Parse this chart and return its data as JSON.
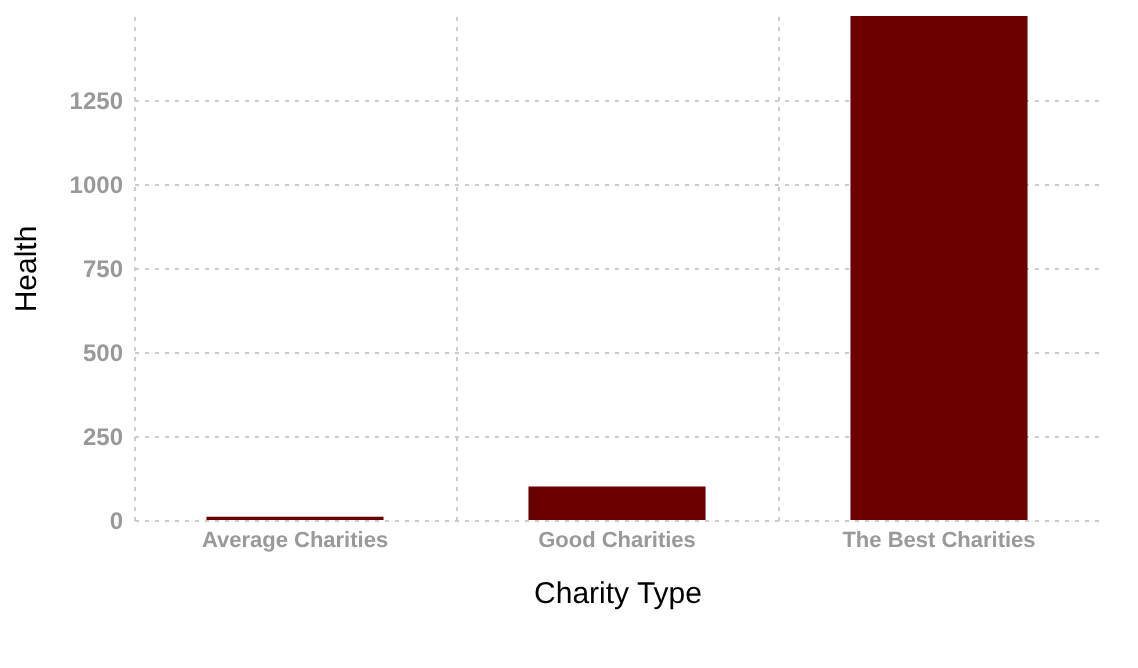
{
  "chart_data": {
    "type": "bar",
    "xlabel": "Charity Type",
    "ylabel": "Health",
    "categories": [
      "Average Charities",
      "Good Charities",
      "The Best Charities"
    ],
    "values": [
      10,
      100,
      1500
    ],
    "color": "#6b0000",
    "ylim": [
      0,
      1500
    ],
    "yticks": [
      0,
      250,
      500,
      750,
      1000,
      1250
    ],
    "grid": true
  }
}
